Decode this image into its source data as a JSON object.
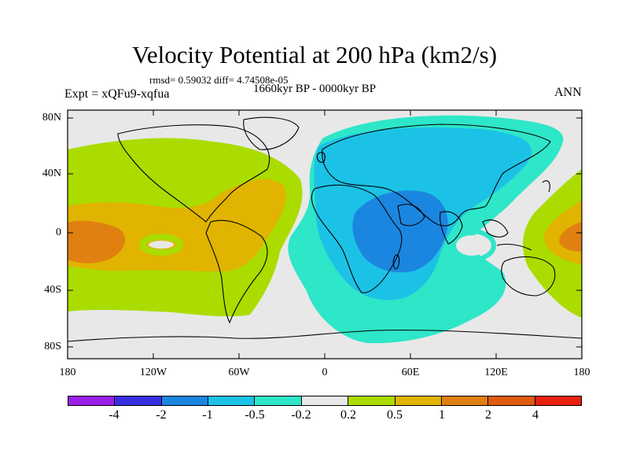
{
  "title": "Velocity Potential at 200 hPa (km2/s)",
  "stats": "rmsd= 0.59032  diff= 4.74508e-05",
  "period": "1660kyr BP - 0000kyr BP",
  "expt": "Expt = xQFu9-xqfua",
  "season": "ANN",
  "lat_ticks": [
    "80N",
    "40N",
    "0",
    "40S",
    "80S"
  ],
  "lon_ticks": [
    "180",
    "120W",
    "60W",
    "0",
    "60E",
    "120E",
    "180"
  ],
  "colorbar": {
    "labels": [
      "-4",
      "-2",
      "-1",
      "-0.5",
      "-0.2",
      "0.2",
      "0.5",
      "1",
      "2",
      "4"
    ],
    "colors": [
      "#9b1fe8",
      "#3a2fe0",
      "#1b86e0",
      "#1cc2e6",
      "#2ee6c8",
      "#e8e8e8",
      "#aadc00",
      "#e0b400",
      "#e08010",
      "#e05a10",
      "#e82010"
    ]
  },
  "map_colors": {
    "ocean": "#e8e8e8",
    "pos_weak": "#aadc00",
    "pos_mid": "#e0b400",
    "pos_strong": "#e08010",
    "neg_weak": "#2ee6c8",
    "neg_mid": "#1cc2e6",
    "neg_strong": "#1b86e0"
  }
}
